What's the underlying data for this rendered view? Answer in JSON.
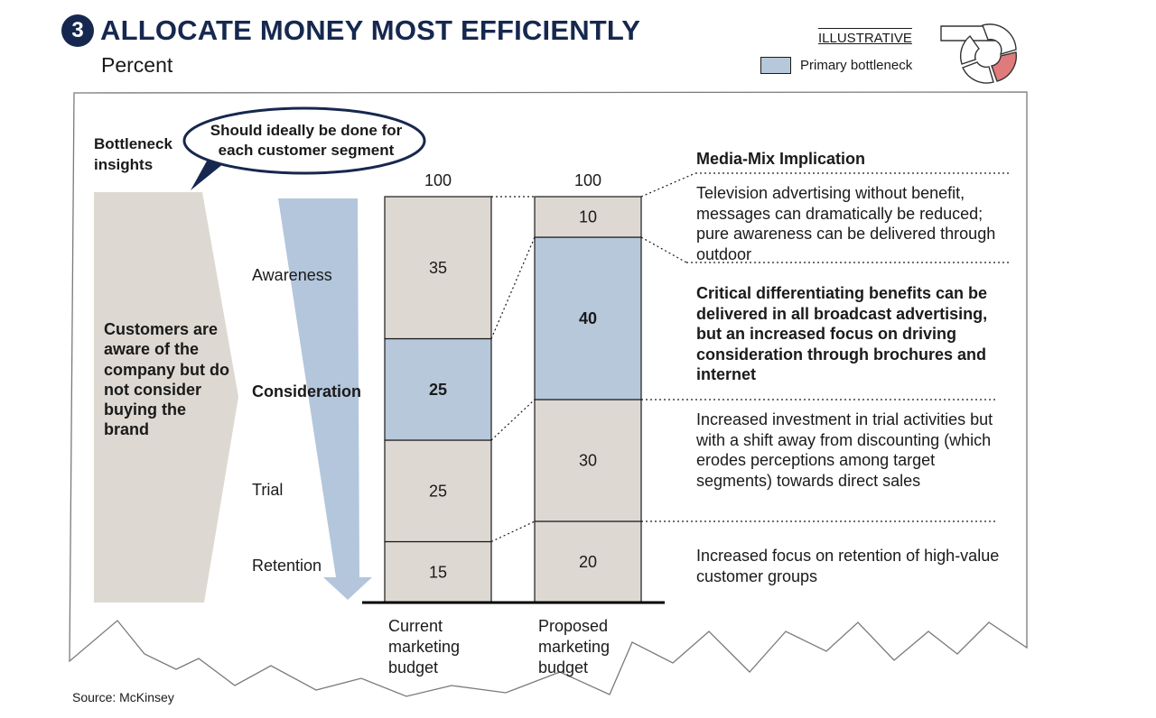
{
  "header": {
    "number": "3",
    "title": "ALLOCATE MONEY MOST EFFICIENTLY",
    "subtitle": "Percent",
    "tag": "ILLUSTRATIVE",
    "legend_label": "Primary bottleneck"
  },
  "left_panel": {
    "heading": "Bottleneck insights",
    "callout": "Should ideally be done for each customer segment",
    "insight": "Customers are aware of the company but do not consider buying the brand"
  },
  "funnel_stages": [
    "Awareness",
    "Consideration",
    "Trial",
    "Retention"
  ],
  "chart_data": {
    "type": "bar",
    "stacked": true,
    "unit": "Percent",
    "categories": [
      "Current marketing budget",
      "Proposed marketing budget"
    ],
    "totals": [
      100,
      100
    ],
    "series": [
      {
        "stage": "Retention",
        "values": [
          15,
          20
        ]
      },
      {
        "stage": "Trial",
        "values": [
          25,
          30
        ]
      },
      {
        "stage": "Consideration",
        "values": [
          25,
          40
        ]
      },
      {
        "stage": "Awareness",
        "values": [
          35,
          10
        ]
      }
    ],
    "highlight_stage": "Consideration",
    "highlight_label": "Primary bottleneck"
  },
  "implications": {
    "header": "Media-Mix Implication",
    "items": [
      "Television advertising without benefit, messages can dramatically be reduced; pure awareness can be delivered through outdoor",
      "Critical differentiating benefits can be delivered in all broadcast advertising, but an increased focus on driving consideration through brochures and internet",
      "Increased investment in trial activities but with a shift away from discounting (which erodes perceptions among target segments) towards direct sales",
      "Increased focus on retention of high-value customer groups"
    ]
  },
  "footer": {
    "source": "Source: McKinsey"
  },
  "colors": {
    "navy": "#16284f",
    "bottleneck": "#b7c8db",
    "segment": "#ddd9d2",
    "arrow": "#b3c6dc",
    "cycle_highlight": "#e07b7b"
  }
}
